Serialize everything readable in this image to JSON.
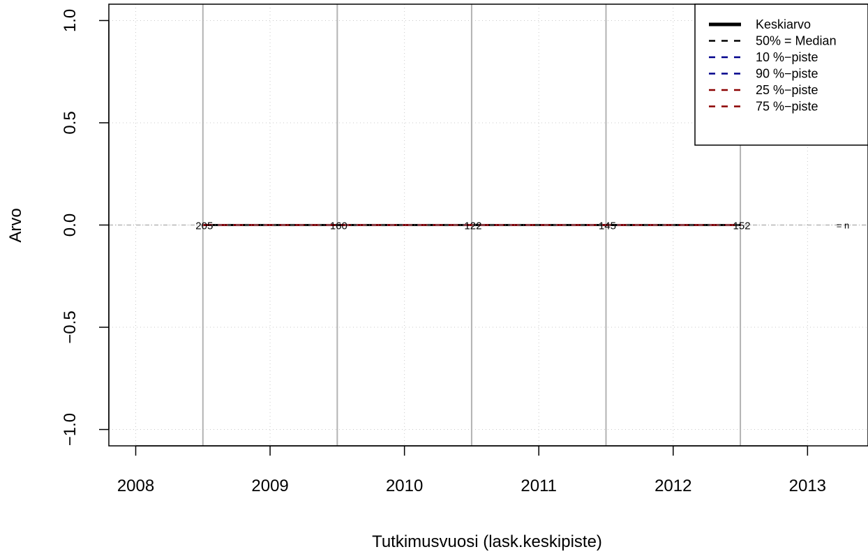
{
  "chart_data": {
    "type": "line",
    "title": "",
    "xlabel": "Tutkimusvuosi (lask.keskipiste)",
    "ylabel": "Arvo",
    "xlim": [
      2007.8,
      2013.45
    ],
    "ylim": [
      -1.08,
      1.08
    ],
    "x_ticks": [
      2008,
      2009,
      2010,
      2011,
      2012,
      2013
    ],
    "x_tick_labels": [
      "2008",
      "2009",
      "2010",
      "2011",
      "2012",
      "2013"
    ],
    "y_ticks": [
      -1.0,
      -0.5,
      0.0,
      0.5,
      1.0
    ],
    "y_tick_labels": [
      "−1.0",
      "−0.5",
      "0.0",
      "0.5",
      "1.0"
    ],
    "grid": true,
    "year_boundaries": [
      2008.5,
      2009.5,
      2010.5,
      2011.5,
      2012.5
    ],
    "x": [
      2008.5,
      2009.5,
      2010.5,
      2011.5,
      2012.5
    ],
    "series": [
      {
        "name": "Keskiarvo",
        "values": [
          0,
          0,
          0,
          0,
          0
        ],
        "color": "#000000",
        "dash": "solid"
      },
      {
        "name": "50% = Median",
        "values": [
          0,
          0,
          0,
          0,
          0
        ],
        "color": "#000000",
        "dash": "dashed"
      },
      {
        "name": "10 %−piste",
        "values": [
          0,
          0,
          0,
          0,
          0
        ],
        "color": "#00008b",
        "dash": "dashed"
      },
      {
        "name": "90 %−piste",
        "values": [
          0,
          0,
          0,
          0,
          0
        ],
        "color": "#00008b",
        "dash": "dashed"
      },
      {
        "name": "25 %−piste",
        "values": [
          0,
          0,
          0,
          0,
          0
        ],
        "color": "#8b0000",
        "dash": "dashed"
      },
      {
        "name": "75 %−piste",
        "values": [
          0,
          0,
          0,
          0,
          0
        ],
        "color": "#8b0000",
        "dash": "dashed"
      }
    ],
    "n_labels": [
      "205",
      "160",
      "122",
      "145",
      "152"
    ],
    "n_legend": "= n",
    "legend_position": "top-right"
  }
}
